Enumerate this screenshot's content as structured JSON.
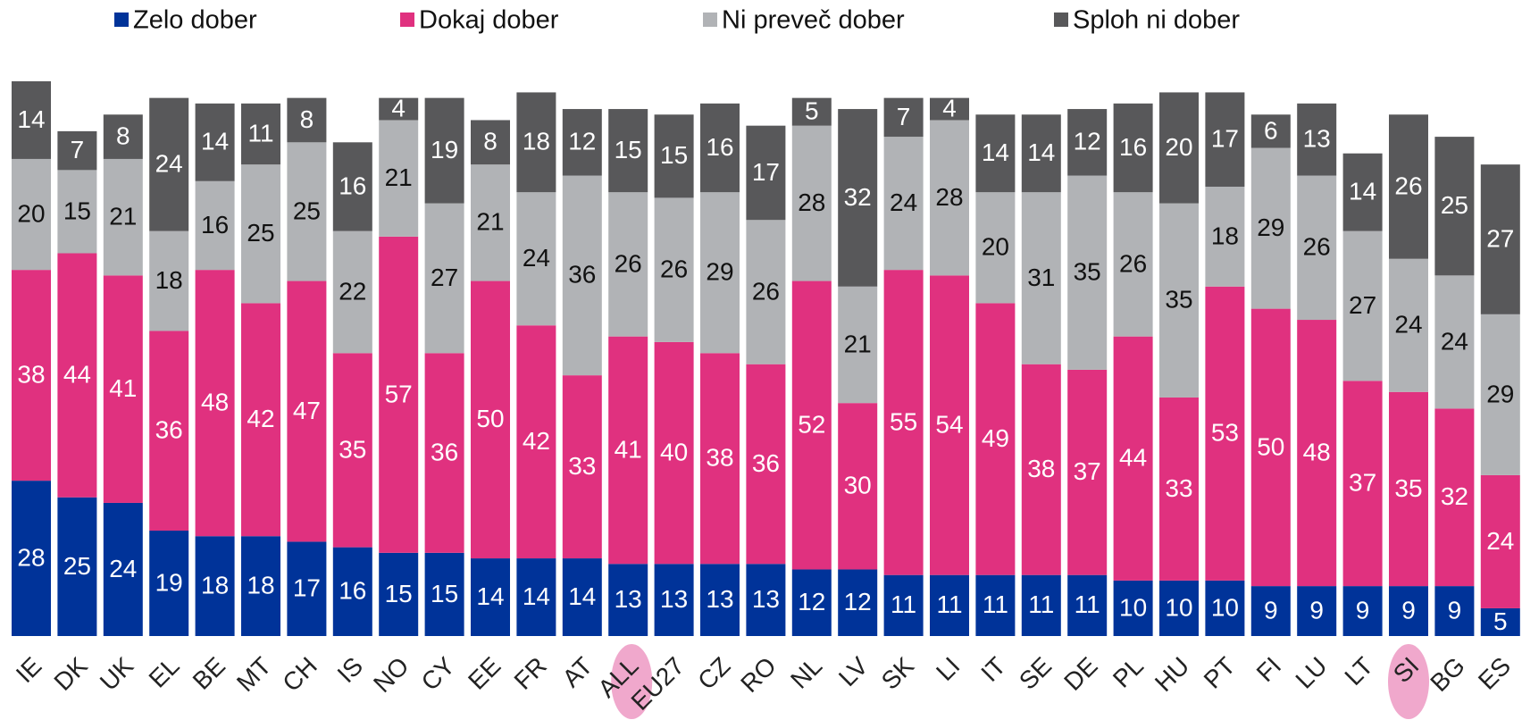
{
  "chart_data": {
    "type": "bar",
    "stacked": true,
    "categories": [
      "IE",
      "DK",
      "UK",
      "EL",
      "BE",
      "MT",
      "CH",
      "IS",
      "NO",
      "CY",
      "EE",
      "FR",
      "AT",
      "ALL",
      "EU27",
      "CZ",
      "RO",
      "NL",
      "LV",
      "SK",
      "LI",
      "IT",
      "SE",
      "DE",
      "PL",
      "HU",
      "PT",
      "FI",
      "LU",
      "LT",
      "SI",
      "BG",
      "ES"
    ],
    "series": [
      {
        "name": "Zelo dober",
        "color": "#003399",
        "values": [
          28,
          25,
          24,
          19,
          18,
          18,
          17,
          16,
          15,
          15,
          14,
          14,
          14,
          13,
          13,
          13,
          13,
          12,
          12,
          11,
          11,
          11,
          11,
          11,
          10,
          10,
          10,
          9,
          9,
          9,
          9,
          9,
          5
        ]
      },
      {
        "name": "Dokaj dober",
        "color": "#e0317f",
        "values": [
          38,
          44,
          41,
          36,
          48,
          42,
          47,
          35,
          57,
          36,
          50,
          42,
          33,
          41,
          40,
          38,
          36,
          52,
          30,
          55,
          54,
          49,
          38,
          37,
          44,
          33,
          53,
          50,
          48,
          37,
          35,
          32,
          24
        ]
      },
      {
        "name": "Ni preveč dober",
        "color": "#b1b3b6",
        "values": [
          20,
          15,
          21,
          18,
          16,
          25,
          25,
          22,
          21,
          27,
          21,
          24,
          36,
          26,
          26,
          29,
          26,
          28,
          21,
          24,
          28,
          20,
          31,
          35,
          26,
          35,
          18,
          29,
          26,
          27,
          24,
          24,
          29
        ]
      },
      {
        "name": "Sploh ni dober",
        "color": "#58585a",
        "values": [
          14,
          7,
          8,
          24,
          14,
          11,
          8,
          16,
          4,
          19,
          8,
          18,
          12,
          15,
          15,
          16,
          17,
          5,
          32,
          7,
          4,
          14,
          14,
          12,
          16,
          20,
          17,
          6,
          13,
          14,
          26,
          25,
          27
        ]
      }
    ],
    "ylim": [
      0,
      100
    ],
    "legend": "top"
  }
}
